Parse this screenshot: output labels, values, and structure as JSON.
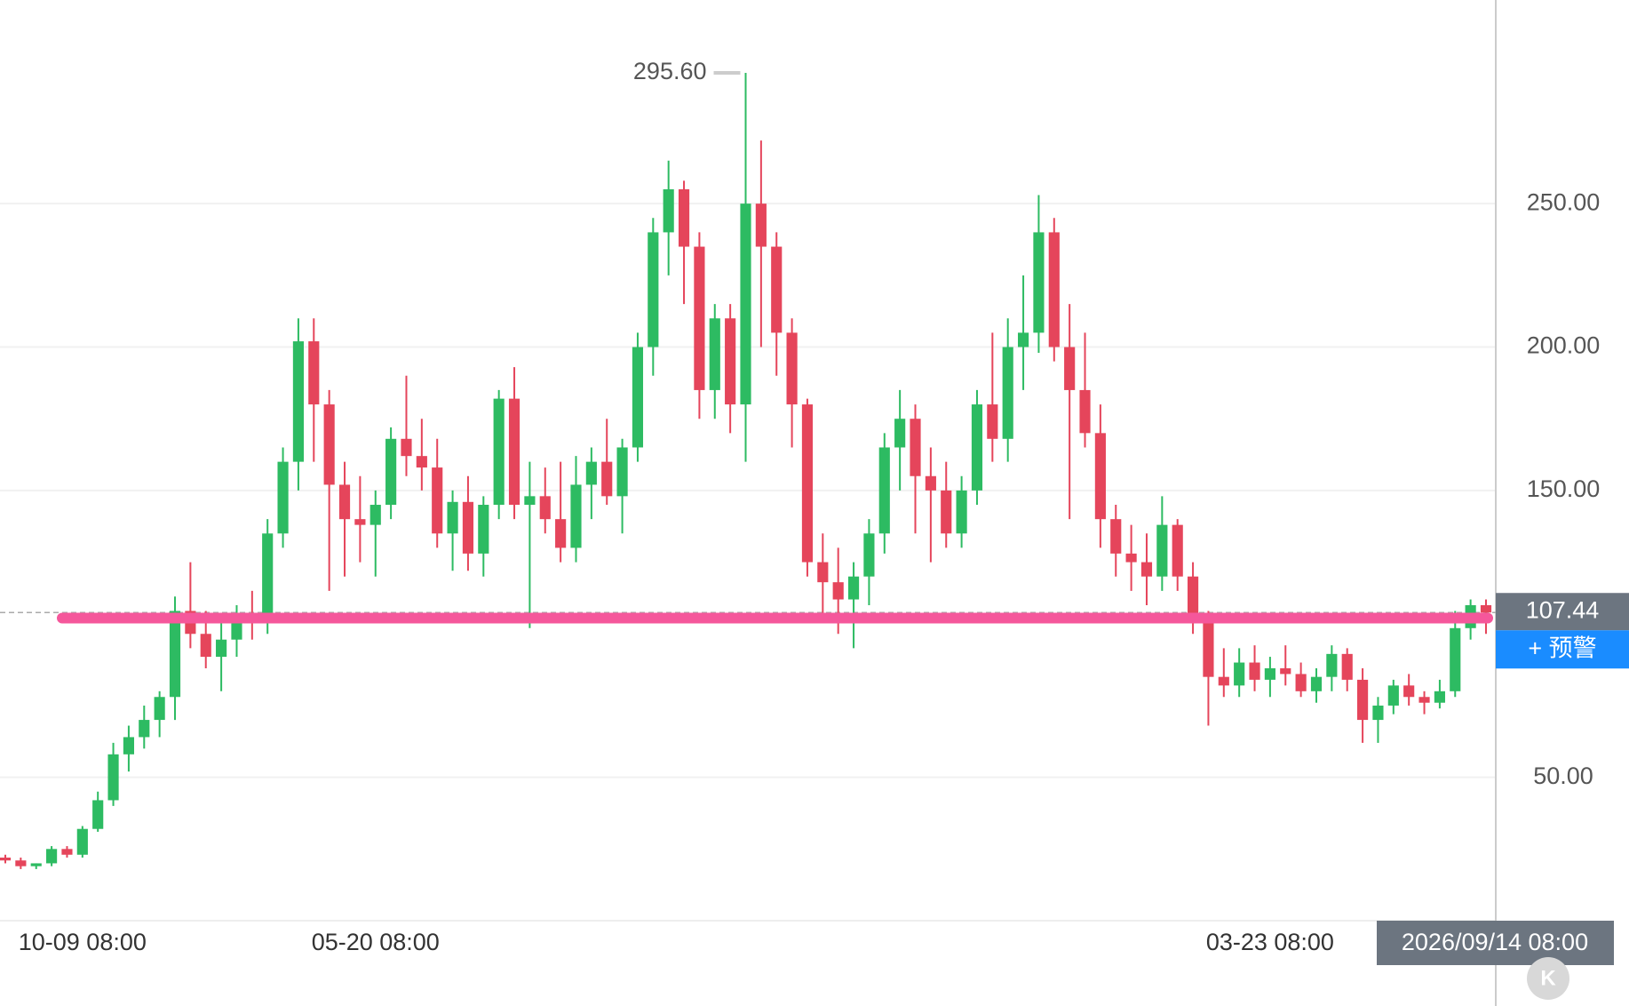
{
  "chart_data": {
    "type": "candlestick",
    "ylim": [
      0,
      321
    ],
    "yticks": [
      {
        "value": 50,
        "label": "50.00"
      },
      {
        "value": 150,
        "label": "150.00"
      },
      {
        "value": 200,
        "label": "200.00"
      },
      {
        "value": 250,
        "label": "250.00"
      }
    ],
    "grid": true,
    "up_color": "#2dbb62",
    "down_color": "#e5455b",
    "max_label": {
      "value": 295.6,
      "label": "295.60"
    },
    "last_price": {
      "value": 107.44,
      "label": "107.44"
    },
    "alert_button": "+ 预警",
    "drawn_line": {
      "value": 105.5,
      "color": "#f5579b"
    },
    "cursor_label": "2026/09/14 08:00",
    "categories": [
      null,
      null,
      null,
      null,
      null,
      "10-09 08:00",
      null,
      null,
      null,
      null,
      null,
      null,
      null,
      null,
      null,
      null,
      null,
      null,
      null,
      null,
      null,
      null,
      null,
      null,
      "05-20 08:00",
      null,
      null,
      null,
      null,
      null,
      null,
      null,
      null,
      null,
      null,
      null,
      null,
      null,
      null,
      null,
      null,
      null,
      null,
      null,
      null,
      null,
      null,
      null,
      null,
      null,
      null,
      null,
      null,
      null,
      null,
      null,
      null,
      null,
      null,
      null,
      null,
      null,
      null,
      null,
      null,
      null,
      null,
      null,
      null,
      null,
      null,
      null,
      null,
      null,
      null,
      null,
      null,
      null,
      null,
      null,
      null,
      null,
      "03-23 08:00",
      null,
      null,
      null,
      null,
      null,
      null,
      null,
      null,
      null,
      null,
      null,
      null,
      null,
      null
    ],
    "ohlc": [
      [
        22,
        23,
        20,
        21
      ],
      [
        21,
        22,
        18,
        19
      ],
      [
        19,
        20,
        18,
        20
      ],
      [
        20,
        26,
        19,
        25
      ],
      [
        25,
        26,
        22,
        23
      ],
      [
        23,
        33,
        22,
        32
      ],
      [
        32,
        45,
        31,
        42
      ],
      [
        42,
        62,
        40,
        58
      ],
      [
        58,
        68,
        52,
        64
      ],
      [
        64,
        75,
        60,
        70
      ],
      [
        70,
        80,
        64,
        78
      ],
      [
        78,
        113,
        70,
        108
      ],
      [
        108,
        125,
        95,
        100
      ],
      [
        100,
        108,
        88,
        92
      ],
      [
        92,
        105,
        80,
        98
      ],
      [
        98,
        110,
        92,
        106
      ],
      [
        106,
        115,
        98,
        104
      ],
      [
        104,
        140,
        100,
        135
      ],
      [
        135,
        165,
        130,
        160
      ],
      [
        160,
        210,
        150,
        202
      ],
      [
        202,
        210,
        160,
        180
      ],
      [
        180,
        185,
        115,
        152
      ],
      [
        152,
        160,
        120,
        140
      ],
      [
        140,
        155,
        125,
        138
      ],
      [
        138,
        150,
        120,
        145
      ],
      [
        145,
        172,
        140,
        168
      ],
      [
        168,
        190,
        155,
        162
      ],
      [
        162,
        175,
        150,
        158
      ],
      [
        158,
        168,
        130,
        135
      ],
      [
        135,
        150,
        122,
        146
      ],
      [
        146,
        155,
        122,
        128
      ],
      [
        128,
        148,
        120,
        145
      ],
      [
        145,
        185,
        140,
        182
      ],
      [
        182,
        193,
        140,
        145
      ],
      [
        145,
        160,
        102,
        148
      ],
      [
        148,
        158,
        135,
        140
      ],
      [
        140,
        160,
        125,
        130
      ],
      [
        130,
        162,
        125,
        152
      ],
      [
        152,
        165,
        140,
        160
      ],
      [
        160,
        175,
        145,
        148
      ],
      [
        148,
        168,
        135,
        165
      ],
      [
        165,
        205,
        160,
        200
      ],
      [
        200,
        245,
        190,
        240
      ],
      [
        240,
        265,
        225,
        255
      ],
      [
        255,
        258,
        215,
        235
      ],
      [
        235,
        240,
        175,
        185
      ],
      [
        185,
        215,
        175,
        210
      ],
      [
        210,
        215,
        170,
        180
      ],
      [
        180,
        295.6,
        160,
        250
      ],
      [
        250,
        272,
        200,
        235
      ],
      [
        235,
        240,
        190,
        205
      ],
      [
        205,
        210,
        165,
        180
      ],
      [
        180,
        182,
        120,
        125
      ],
      [
        125,
        135,
        105,
        118
      ],
      [
        118,
        130,
        100,
        112
      ],
      [
        112,
        125,
        95,
        120
      ],
      [
        120,
        140,
        110,
        135
      ],
      [
        135,
        170,
        128,
        165
      ],
      [
        165,
        185,
        150,
        175
      ],
      [
        175,
        180,
        135,
        155
      ],
      [
        155,
        165,
        125,
        150
      ],
      [
        150,
        160,
        130,
        135
      ],
      [
        135,
        155,
        130,
        150
      ],
      [
        150,
        185,
        145,
        180
      ],
      [
        180,
        205,
        160,
        168
      ],
      [
        168,
        210,
        160,
        200
      ],
      [
        200,
        225,
        185,
        205
      ],
      [
        205,
        253,
        198,
        240
      ],
      [
        240,
        245,
        195,
        200
      ],
      [
        200,
        215,
        140,
        185
      ],
      [
        185,
        205,
        165,
        170
      ],
      [
        170,
        180,
        130,
        140
      ],
      [
        140,
        145,
        120,
        128
      ],
      [
        128,
        138,
        115,
        125
      ],
      [
        125,
        135,
        110,
        120
      ],
      [
        120,
        148,
        115,
        138
      ],
      [
        138,
        140,
        115,
        120
      ],
      [
        120,
        125,
        100,
        105
      ],
      [
        105,
        108,
        68,
        85
      ],
      [
        85,
        95,
        78,
        82
      ],
      [
        82,
        95,
        78,
        90
      ],
      [
        90,
        96,
        80,
        84
      ],
      [
        84,
        92,
        78,
        88
      ],
      [
        88,
        96,
        82,
        86
      ],
      [
        86,
        90,
        78,
        80
      ],
      [
        80,
        88,
        76,
        85
      ],
      [
        85,
        96,
        80,
        93
      ],
      [
        93,
        95,
        80,
        84
      ],
      [
        84,
        88,
        62,
        70
      ],
      [
        70,
        78,
        62,
        75
      ],
      [
        75,
        84,
        72,
        82
      ],
      [
        82,
        86,
        75,
        78
      ],
      [
        78,
        80,
        72,
        76
      ],
      [
        76,
        84,
        74,
        80
      ],
      [
        80,
        108,
        78,
        102
      ],
      [
        102,
        112,
        98,
        110
      ],
      [
        110,
        112,
        100,
        107.44
      ]
    ]
  },
  "button": "K"
}
